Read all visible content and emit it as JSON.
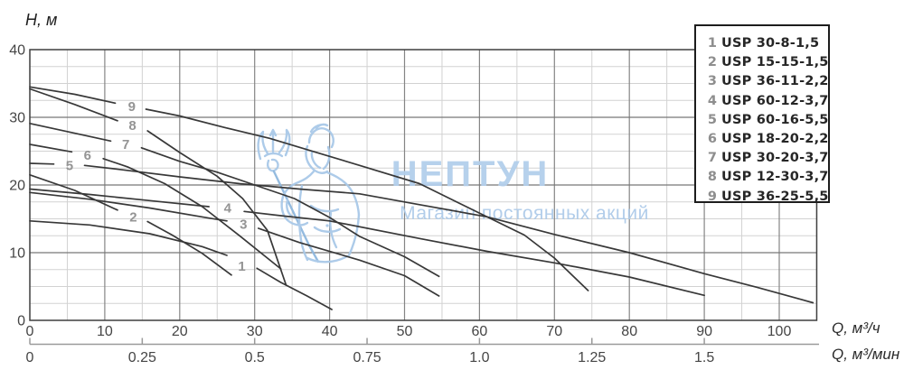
{
  "y_axis_title": "H, м",
  "x_axis_unit_primary": "Q, м³/ч",
  "x_axis_unit_secondary": "Q, м³/мин",
  "watermark": {
    "brand": "НЕПТУН",
    "tagline": "Магазин постоянных акций",
    "color": "#aecbe9"
  },
  "legend": {
    "items": [
      {
        "num": "1",
        "name": "USP 30-8-1,5"
      },
      {
        "num": "2",
        "name": "USP 15-15-1,5"
      },
      {
        "num": "3",
        "name": "USP 36-11-2,2"
      },
      {
        "num": "4",
        "name": "USP 60-12-3,7"
      },
      {
        "num": "5",
        "name": "USP 60-16-5,5"
      },
      {
        "num": "6",
        "name": "USP 18-20-2,2"
      },
      {
        "num": "7",
        "name": "USP 30-20-3,7"
      },
      {
        "num": "8",
        "name": "USP 12-30-3,7"
      },
      {
        "num": "9",
        "name": "USP 36-25-5,5"
      }
    ]
  },
  "chart_data": {
    "type": "line",
    "title": "",
    "ylabel": "H, м",
    "xlabel_primary": "Q, м³/ч",
    "xlabel_secondary": "Q, м³/мин",
    "xlim": [
      0,
      105
    ],
    "ylim": [
      0,
      40
    ],
    "grid": {
      "x_minor_step": 5,
      "x_major_step": 10,
      "y_minor_step": 2.5,
      "y_major_step": 10
    },
    "x_ticks_primary": [
      0,
      10,
      20,
      30,
      40,
      50,
      60,
      70,
      80,
      90,
      100
    ],
    "x_ticks_secondary": [
      {
        "label": "0",
        "v": 0
      },
      {
        "label": "0.25",
        "v": 0.25
      },
      {
        "label": "0.5",
        "v": 0.5
      },
      {
        "label": "0.75",
        "v": 0.75
      },
      {
        "label": "1.0",
        "v": 1.0
      },
      {
        "label": "1.25",
        "v": 1.25
      },
      {
        "label": "1.5",
        "v": 1.5
      }
    ],
    "x_secondary_to_primary_factor": 60,
    "y_ticks": [
      0,
      10,
      20,
      30,
      40
    ],
    "curve_color": "#383838",
    "series": [
      {
        "label": "1",
        "name": "USP 30-8-1,5",
        "label_q": 28.3,
        "label_h": 8,
        "segments": [
          [
            [
              0,
              14.7
            ],
            [
              8,
              14.1
            ],
            [
              16,
              12.8
            ],
            [
              23,
              10.9
            ],
            [
              26.3,
              9.6
            ]
          ],
          [
            [
              30.3,
              7.7
            ],
            [
              33.5,
              5.6
            ],
            [
              37,
              3.6
            ],
            [
              40.3,
              1.6
            ]
          ]
        ]
      },
      {
        "label": "2",
        "name": "USP 15-15-1,5",
        "label_q": 13.8,
        "label_h": 15.3,
        "segments": [
          [
            [
              0,
              21.5
            ],
            [
              6,
              19.2
            ],
            [
              11.7,
              16.3
            ]
          ],
          [
            [
              15.7,
              14.6
            ],
            [
              19,
              12.6
            ],
            [
              23,
              9.9
            ],
            [
              26.9,
              6.7
            ]
          ]
        ]
      },
      {
        "label": "3",
        "name": "USP 36-11-2,2",
        "label_q": 28.5,
        "label_h": 14.2,
        "segments": [
          [
            [
              0,
              18.9
            ],
            [
              8,
              17.9
            ],
            [
              16,
              16.6
            ],
            [
              24,
              15.1
            ],
            [
              26.3,
              14.7
            ]
          ],
          [
            [
              30.5,
              13.6
            ],
            [
              36,
              11.5
            ],
            [
              44,
              8.9
            ],
            [
              50,
              6.6
            ],
            [
              54.6,
              3.6
            ]
          ]
        ]
      },
      {
        "label": "4",
        "name": "USP 60-12-3,7",
        "label_q": 26.4,
        "label_h": 16.6,
        "segments": [
          [
            [
              0,
              19.4
            ],
            [
              8,
              18.6
            ],
            [
              16,
              17.7
            ],
            [
              23.9,
              16.8
            ]
          ],
          [
            [
              28.6,
              16.1
            ],
            [
              34,
              15.4
            ],
            [
              40,
              14.7
            ],
            [
              52,
              12.1
            ],
            [
              61,
              10.2
            ],
            [
              70,
              8.5
            ],
            [
              80,
              6.4
            ],
            [
              90,
              3.7
            ]
          ]
        ]
      },
      {
        "label": "5",
        "name": "USP 60-16-5,5",
        "label_q": 5.3,
        "label_h": 22.9,
        "segments": [
          [
            [
              0,
              23.2
            ],
            [
              3.2,
              23.1
            ]
          ],
          [
            [
              7.3,
              22.9
            ],
            [
              12,
              22.3
            ],
            [
              20,
              21.2
            ],
            [
              28,
              20.2
            ],
            [
              36,
              19.4
            ],
            [
              44,
              18.7
            ],
            [
              52,
              17.1
            ],
            [
              61,
              15.3
            ],
            [
              70,
              12.7
            ],
            [
              80,
              10
            ],
            [
              90,
              6.9
            ],
            [
              97,
              4.9
            ],
            [
              104.5,
              2.6
            ]
          ]
        ]
      },
      {
        "label": "6",
        "name": "USP 18-20-2,2",
        "label_q": 7.7,
        "label_h": 24.4,
        "segments": [
          [
            [
              0,
              26
            ],
            [
              5.6,
              24.9
            ]
          ],
          [
            [
              9.8,
              23.9
            ],
            [
              13,
              22.7
            ],
            [
              18,
              20.2
            ],
            [
              23,
              16.8
            ],
            [
              28,
              12.5
            ],
            [
              33.5,
              7.6
            ]
          ]
        ]
      },
      {
        "label": "7",
        "name": "USP 30-20-3,7",
        "label_q": 12.8,
        "label_h": 26,
        "segments": [
          [
            [
              0,
              29.1
            ],
            [
              5,
              27.9
            ],
            [
              10.8,
              26.5
            ]
          ],
          [
            [
              14.9,
              25.5
            ],
            [
              20,
              23.5
            ],
            [
              25,
              21.9
            ],
            [
              30,
              20
            ],
            [
              35.3,
              18
            ],
            [
              40,
              15.2
            ],
            [
              44,
              12.4
            ],
            [
              50,
              9.4
            ],
            [
              54.6,
              6.5
            ]
          ]
        ]
      },
      {
        "label": "8",
        "name": "USP 12-30-3,7",
        "label_q": 13.7,
        "label_h": 28.8,
        "segments": [
          [
            [
              0,
              34.2
            ],
            [
              6,
              31.9
            ],
            [
              11.7,
              29.5
            ]
          ],
          [
            [
              15.7,
              28
            ],
            [
              20,
              24.8
            ],
            [
              25,
              21.3
            ],
            [
              28.4,
              18
            ],
            [
              31.7,
              13.3
            ],
            [
              34.2,
              5.2
            ]
          ]
        ]
      },
      {
        "label": "9",
        "name": "USP 36-25-5,5",
        "label_q": 13.6,
        "label_h": 31.6,
        "segments": [
          [
            [
              0,
              34.5
            ],
            [
              6,
              33.4
            ],
            [
              11.4,
              32.1
            ]
          ],
          [
            [
              15.5,
              31.2
            ],
            [
              20,
              30.2
            ],
            [
              26,
              28.5
            ],
            [
              32,
              26.9
            ],
            [
              38,
              24.9
            ],
            [
              44,
              22.9
            ],
            [
              52,
              20.2
            ],
            [
              61,
              15.3
            ],
            [
              66,
              12.6
            ],
            [
              70,
              9.2
            ],
            [
              74.5,
              4.4
            ]
          ]
        ]
      }
    ]
  }
}
